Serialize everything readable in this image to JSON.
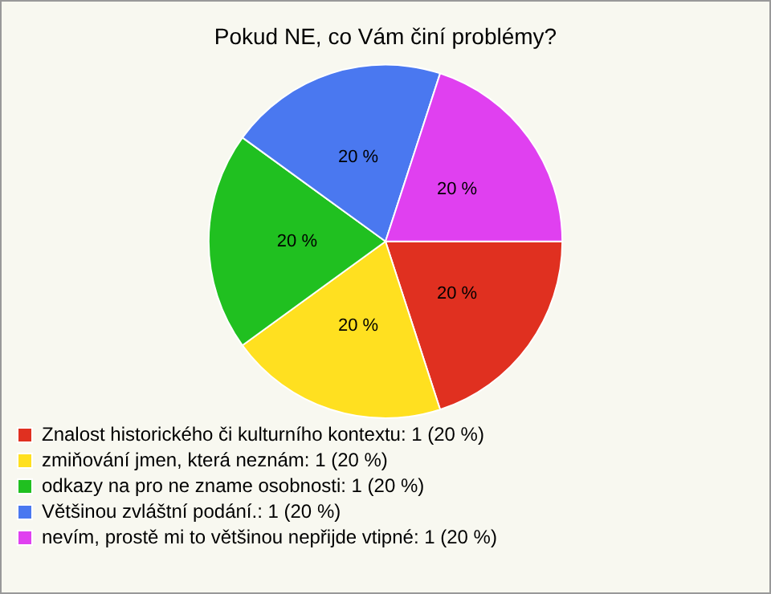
{
  "chart_data": {
    "type": "pie",
    "title": "Pokud NE, co Vám činí problémy?",
    "categories": [
      "Znalost historického či kulturního kontextu: 1 (20 %)",
      "zmiňování jmen, která neznám: 1 (20 %)",
      "odkazy na pro ne zname osobnosti: 1 (20 %)",
      "Většinou zvláštní podání.: 1 (20 %)",
      "nevím, prostě mi to většinou nepřijde vtipné: 1 (20 %)"
    ],
    "values": [
      20,
      20,
      20,
      20,
      20
    ],
    "colors": [
      "#e03020",
      "#ffe020",
      "#20c020",
      "#4a78f0",
      "#e040f0"
    ],
    "value_labels": [
      "20 %",
      "20 %",
      "20 %",
      "20 %",
      "20 %"
    ],
    "legend": "bottom"
  }
}
